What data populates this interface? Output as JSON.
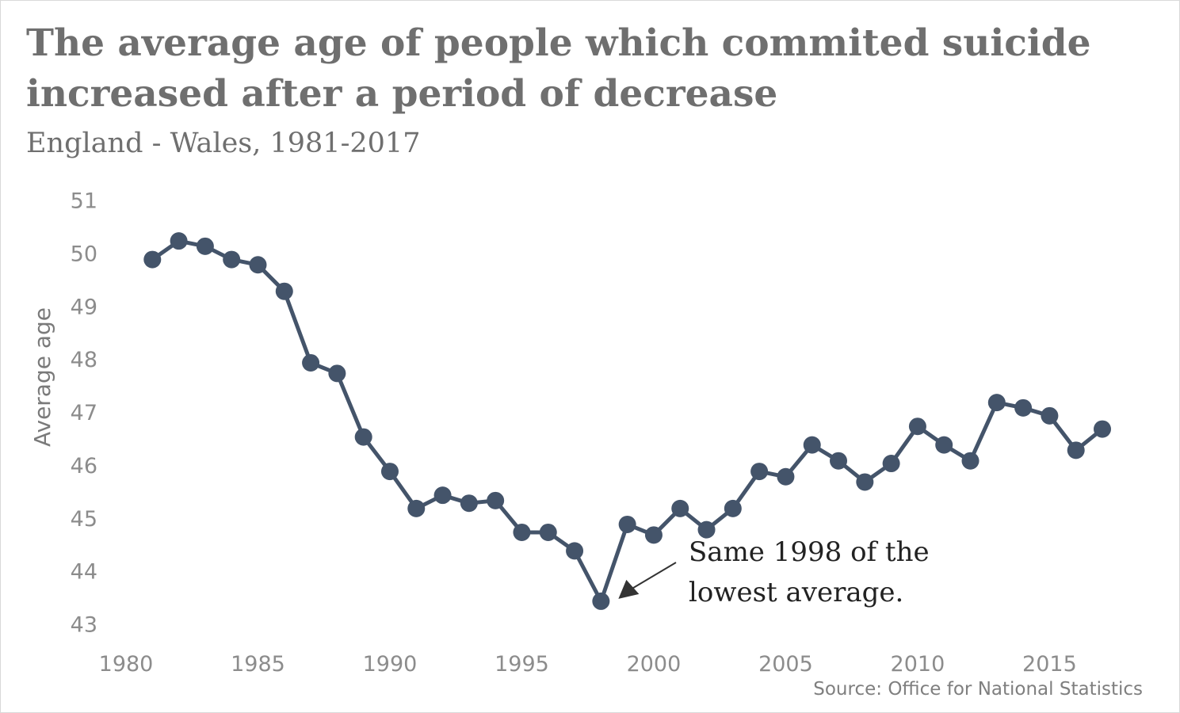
{
  "header": {
    "title": "The average age of people which commited suicide increased after a period of decrease",
    "subtitle": "England - Wales, 1981-2017"
  },
  "footer": {
    "source": "Source: Office for National Statistics"
  },
  "colors": {
    "series": "#44546a",
    "text": "#6f6f6f",
    "ticks": "#8c8c8c"
  },
  "chart_data": {
    "type": "line",
    "title": "The average age of people which commited suicide increased after a period of decrease",
    "subtitle": "England - Wales, 1981-2017",
    "xlabel": "",
    "ylabel": "Average age",
    "xlim": [
      1980,
      2017
    ],
    "ylim": [
      43,
      51
    ],
    "x_ticks": [
      1980,
      1985,
      1990,
      1995,
      2000,
      2005,
      2010,
      2015
    ],
    "y_ticks": [
      43,
      44,
      45,
      46,
      47,
      48,
      49,
      50,
      51
    ],
    "grid": false,
    "legend": "none",
    "markers": true,
    "series": [
      {
        "x": [
          1981,
          1982,
          1983,
          1984,
          1985,
          1986,
          1987,
          1988,
          1989,
          1990,
          1991,
          1992,
          1993,
          1994,
          1995,
          1996,
          1997,
          1998,
          1999,
          2000,
          2001,
          2002,
          2003,
          2004,
          2005,
          2006,
          2007,
          2008,
          2009,
          2010,
          2011,
          2012,
          2013,
          2014,
          2015,
          2016,
          2017
        ],
        "values": [
          49.9,
          50.25,
          50.15,
          49.9,
          49.8,
          49.3,
          47.95,
          47.75,
          46.55,
          45.9,
          45.2,
          45.45,
          45.3,
          45.35,
          44.75,
          44.75,
          44.4,
          43.45,
          44.9,
          44.7,
          45.2,
          44.8,
          45.2,
          45.9,
          45.8,
          46.4,
          46.1,
          45.7,
          46.05,
          46.75,
          46.4,
          46.1,
          47.2,
          47.1,
          46.95,
          46.3,
          46.7
        ]
      }
    ],
    "annotations": [
      {
        "x": 1998,
        "y": 43.45,
        "lines": [
          "Same 1998 of the",
          "lowest average."
        ]
      }
    ],
    "source": "Source: Office for National Statistics"
  }
}
